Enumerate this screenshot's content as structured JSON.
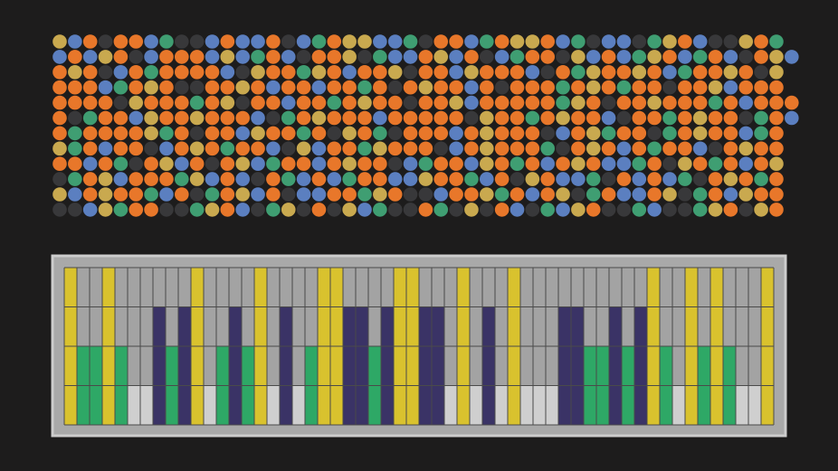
{
  "dots": {
    "palette": {
      "o": "#e8772a",
      "b": "#5b7fc0",
      "g": "#3f9e72",
      "y": "#c9a94f",
      "k": "#38383a"
    },
    "rows": [
      "ybokoobgkkbobbokbgoyybbgkoobgoyyobgkbbkgyobkkyog",
      "bobyokbooobybgobkooykgbboybokbgookybobgyobgobkoyb",
      "oyokbogoooobkyoogyobooykoobyooobkogyooyobgooyoky",
      "ooobgoyokkooyobooboogokoyoobokooogoyogookooybooo",
      "ooookyooogoykooboogoyookooybooooogyokooyooogobooo",
      "okgoobyooyooobkgoyoooboooookyoogoyoobkoogoyookgob",
      "ogooooygokoobyoogokyogkoooboyoookboygookgoyoobgo",
      "ygobookboyogoobkyboogyoookboyooogkoyobogoobkoyoo",
      "oobogkoybokoybgooboyookbgoobyogoboyobbgokyogoboy",
      "kgoybooogybobkogbobgoobbyoogbokyobbgkobobgkoyogo",
      "yboyoogbokgoybokbboogyokkbooygoboykgobboykgobyoo",
      "kkbygookkgyobkgykokybgkkogkykobkgbyokkgbkkgyokyo"
    ]
  },
  "bars": {
    "colors": {
      "1": "#cfcfcf",
      "2": "#2ea866",
      "3": "#3a3366",
      "4": "#d9c22e"
    },
    "rows": 4,
    "heights": [
      4,
      2,
      2,
      4,
      2,
      1,
      1,
      3,
      2,
      3,
      4,
      1,
      2,
      3,
      2,
      4,
      1,
      3,
      1,
      2,
      4,
      4,
      3,
      3,
      2,
      3,
      4,
      4,
      3,
      3,
      1,
      4,
      1,
      3,
      1,
      4,
      1,
      1,
      1,
      3,
      3,
      2,
      2,
      3,
      2,
      3,
      4,
      2,
      1,
      4,
      2,
      4,
      2,
      1,
      1,
      4
    ]
  }
}
